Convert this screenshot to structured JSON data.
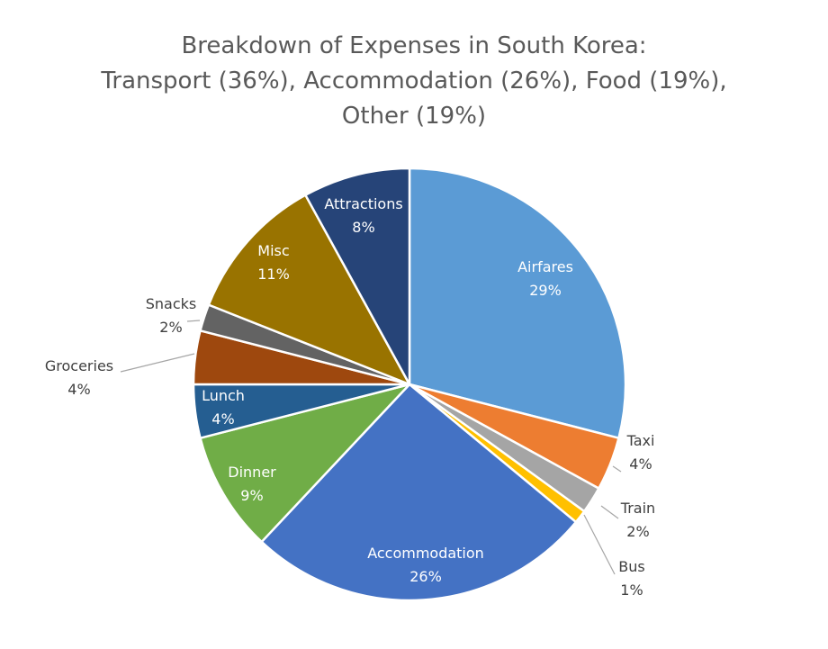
{
  "chart_data": {
    "type": "pie",
    "title": "Breakdown of Expenses in South Korea: Transport (36%), Accommodation (26%), Food (19%), Other (19%)",
    "title_lines": [
      "Breakdown of Expenses in South Korea:",
      "Transport (36%), Accommodation (26%), Food (19%),",
      "Other (19%)"
    ],
    "start_angle_deg": 0,
    "direction": "clockwise",
    "slices": [
      {
        "label": "Airfares",
        "value": 29,
        "pct_label": "29%",
        "color": "#5B9BD5"
      },
      {
        "label": "Taxi",
        "value": 4,
        "pct_label": "4%",
        "color": "#ED7D31"
      },
      {
        "label": "Train",
        "value": 2,
        "pct_label": "2%",
        "color": "#A5A5A5"
      },
      {
        "label": "Bus",
        "value": 1,
        "pct_label": "1%",
        "color": "#FFC000"
      },
      {
        "label": "Accommodation",
        "value": 26,
        "pct_label": "26%",
        "color": "#4472C4"
      },
      {
        "label": "Dinner",
        "value": 9,
        "pct_label": "9%",
        "color": "#70AD47"
      },
      {
        "label": "Lunch",
        "value": 4,
        "pct_label": "4%",
        "color": "#255E91"
      },
      {
        "label": "Groceries",
        "value": 4,
        "pct_label": "4%",
        "color": "#9E480E"
      },
      {
        "label": "Snacks",
        "value": 2,
        "pct_label": "2%",
        "color": "#636363"
      },
      {
        "label": "Misc",
        "value": 11,
        "pct_label": "11%",
        "color": "#997300"
      },
      {
        "label": "Attractions",
        "value": 8,
        "pct_label": "8%",
        "color": "#264478"
      }
    ]
  }
}
